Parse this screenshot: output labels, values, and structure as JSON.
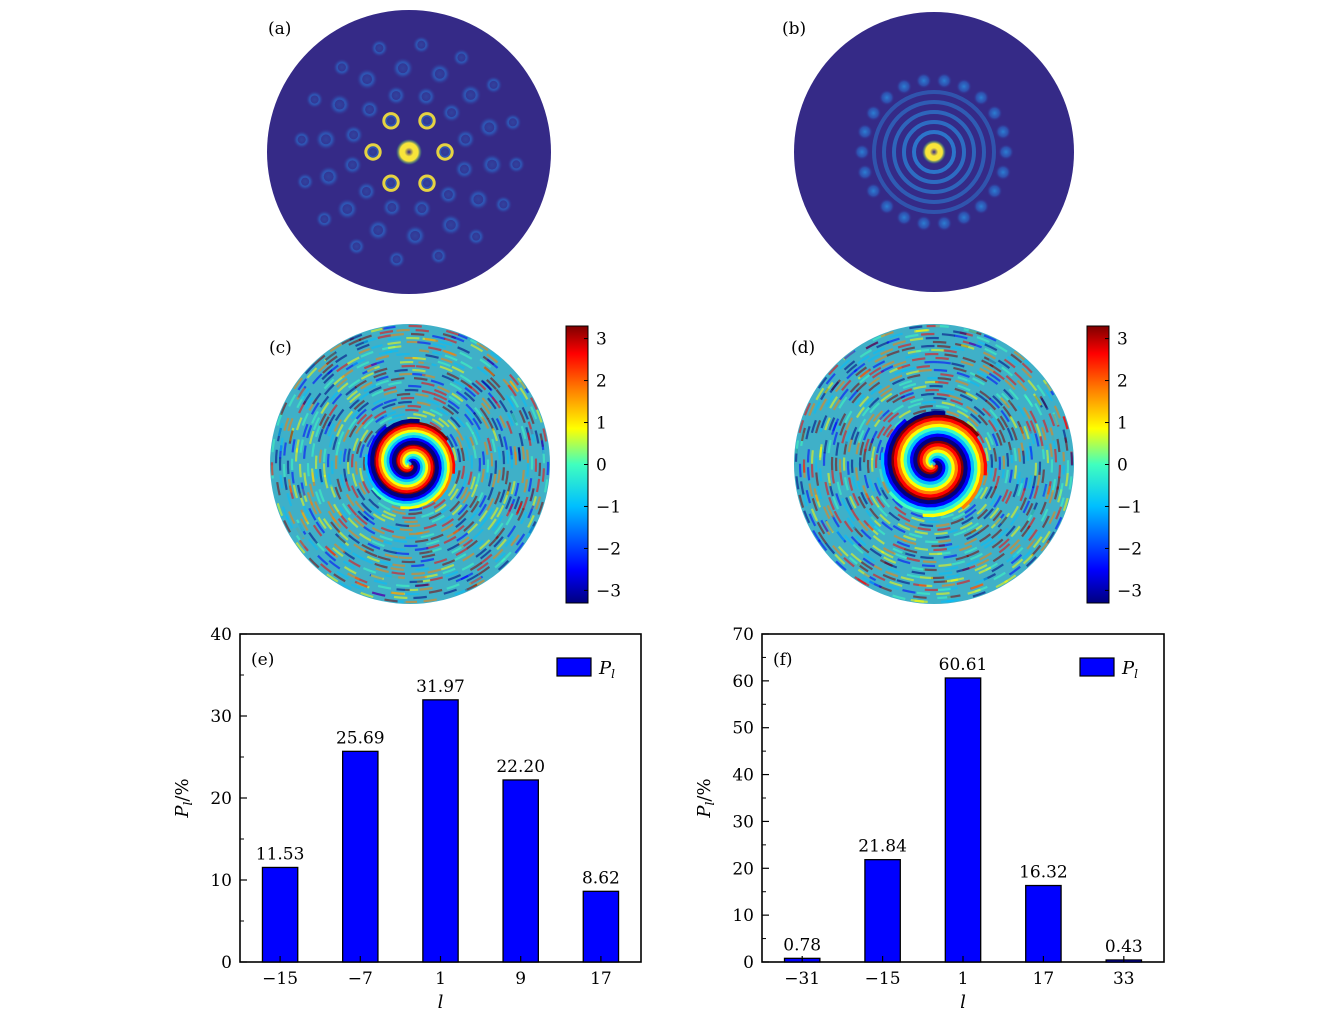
{
  "panels": {
    "a": {
      "label": "(a)"
    },
    "b": {
      "label": "(b)"
    },
    "c": {
      "label": "(c)"
    },
    "d": {
      "label": "(d)"
    }
  },
  "colorbar": {
    "ticks": [
      "3",
      "2",
      "1",
      "0",
      "−1",
      "−2",
      "−3"
    ],
    "values": [
      3,
      2,
      1,
      0,
      -1,
      -2,
      -3
    ],
    "colors": [
      "#00007f",
      "#0000ff",
      "#00bfff",
      "#40ffbf",
      "#ffff00",
      "#ff7f00",
      "#ff0000",
      "#7f0000"
    ]
  },
  "colors": {
    "background": "#352a87",
    "bar": "#0000ff",
    "intensity_dim": "#1a7fe0",
    "intensity_peak": "#f8e43a"
  },
  "chart_data": [
    {
      "type": "bar",
      "panel_label": "(e)",
      "categories": [
        "−15",
        "−7",
        "1",
        "9",
        "17"
      ],
      "values": [
        11.53,
        25.69,
        31.97,
        22.2,
        8.62
      ],
      "value_labels": [
        "11.53",
        "25.69",
        "31.97",
        "22.20",
        "8.62"
      ],
      "ylim": [
        0,
        40
      ],
      "yticks": [
        "0",
        "10",
        "20",
        "30",
        "40"
      ],
      "xlabel": "l",
      "ylabel": "P_l/%",
      "legend": "P_l",
      "legend_position": "top-right"
    },
    {
      "type": "bar",
      "panel_label": "(f)",
      "categories": [
        "−31",
        "−15",
        "1",
        "17",
        "33"
      ],
      "values": [
        0.78,
        21.84,
        60.61,
        16.32,
        0.43
      ],
      "value_labels": [
        "0.78",
        "21.84",
        "60.61",
        "16.32",
        "0.43"
      ],
      "ylim": [
        0,
        70
      ],
      "yticks": [
        "0",
        "10",
        "20",
        "30",
        "40",
        "50",
        "60",
        "70"
      ],
      "xlabel": "l",
      "ylabel": "P_l/%",
      "legend": "P_l",
      "legend_position": "top-right"
    }
  ]
}
